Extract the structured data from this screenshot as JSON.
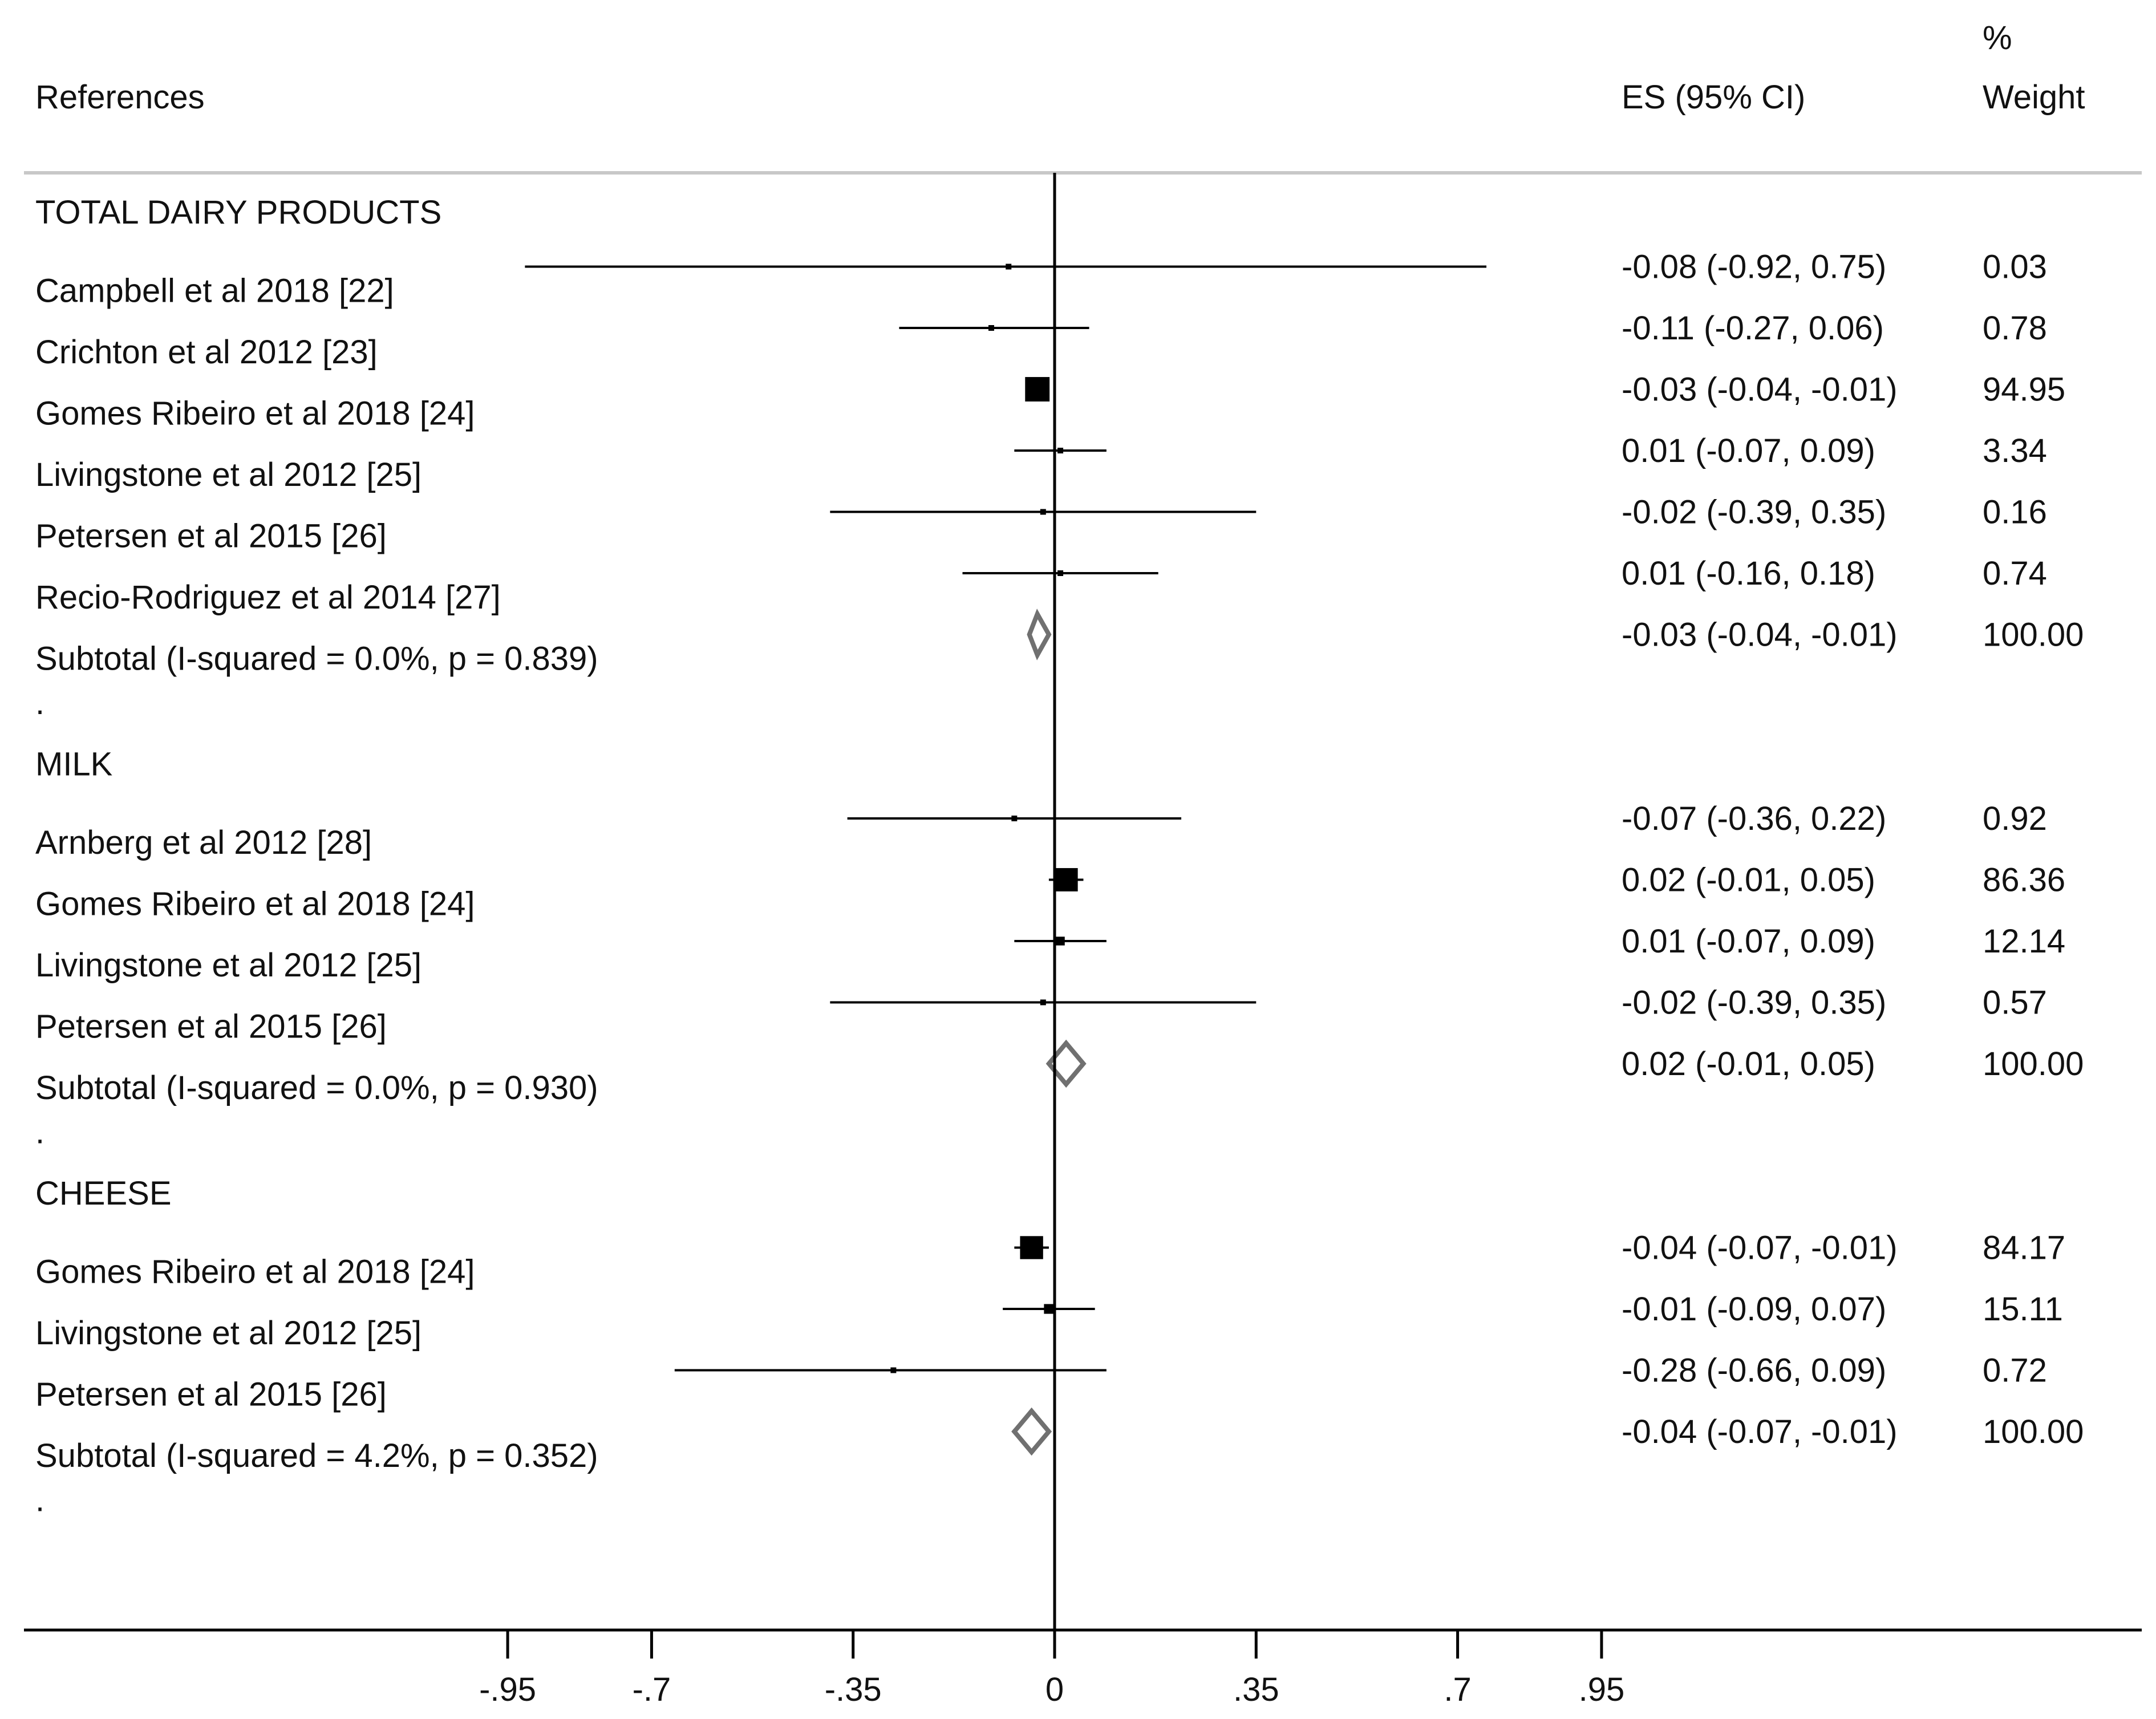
{
  "chart_data": {
    "type": "forest",
    "header": {
      "references_label": "References",
      "es_label": "ES (95% CI)",
      "weight_label_line1": "%",
      "weight_label_line2": "Weight"
    },
    "xaxis": {
      "ticks": [
        -0.95,
        -0.7,
        -0.35,
        0,
        0.35,
        0.7,
        0.95
      ],
      "tick_labels": [
        "-.95",
        "-.7",
        "-.35",
        "0",
        ".35",
        ".7",
        ".95"
      ],
      "range": [
        -0.95,
        0.95
      ]
    },
    "rows": [
      {
        "kind": "group",
        "label": "TOTAL DAIRY PRODUCTS"
      },
      {
        "kind": "study",
        "label": "Campbell et al 2018 [22]",
        "es": -0.08,
        "lo": -0.92,
        "hi": 0.75,
        "es_text": "-0.08 (-0.92, 0.75)",
        "weight": 0.03,
        "weight_text": "0.03"
      },
      {
        "kind": "study",
        "label": "Crichton et al 2012 [23]",
        "es": -0.11,
        "lo": -0.27,
        "hi": 0.06,
        "es_text": "-0.11 (-0.27, 0.06)",
        "weight": 0.78,
        "weight_text": "0.78"
      },
      {
        "kind": "study",
        "label": "Gomes Ribeiro et al 2018 [24]",
        "es": -0.03,
        "lo": -0.04,
        "hi": -0.01,
        "es_text": "-0.03 (-0.04, -0.01)",
        "weight": 94.95,
        "weight_text": "94.95"
      },
      {
        "kind": "study",
        "label": "Livingstone et al 2012 [25]",
        "es": 0.01,
        "lo": -0.07,
        "hi": 0.09,
        "es_text": "0.01 (-0.07, 0.09)",
        "weight": 3.34,
        "weight_text": "3.34"
      },
      {
        "kind": "study",
        "label": "Petersen et al 2015 [26]",
        "es": -0.02,
        "lo": -0.39,
        "hi": 0.35,
        "es_text": "-0.02 (-0.39, 0.35)",
        "weight": 0.16,
        "weight_text": "0.16"
      },
      {
        "kind": "study",
        "label": "Recio-Rodriguez et al 2014 [27]",
        "es": 0.01,
        "lo": -0.16,
        "hi": 0.18,
        "es_text": "0.01 (-0.16, 0.18)",
        "weight": 0.74,
        "weight_text": "0.74"
      },
      {
        "kind": "subtotal",
        "label": "Subtotal  (I-squared = 0.0%, p = 0.839)",
        "es": -0.03,
        "lo": -0.04,
        "hi": -0.01,
        "es_text": "-0.03 (-0.04, -0.01)",
        "weight": 100.0,
        "weight_text": "100.00"
      },
      {
        "kind": "spacer",
        "label": "."
      },
      {
        "kind": "group",
        "label": "MILK"
      },
      {
        "kind": "study",
        "label": "Arnberg et al 2012 [28]",
        "es": -0.07,
        "lo": -0.36,
        "hi": 0.22,
        "es_text": "-0.07 (-0.36, 0.22)",
        "weight": 0.92,
        "weight_text": "0.92"
      },
      {
        "kind": "study",
        "label": "Gomes Ribeiro et al 2018 [24]",
        "es": 0.02,
        "lo": -0.01,
        "hi": 0.05,
        "es_text": "0.02 (-0.01, 0.05)",
        "weight": 86.36,
        "weight_text": "86.36"
      },
      {
        "kind": "study",
        "label": "Livingstone et al 2012 [25]",
        "es": 0.01,
        "lo": -0.07,
        "hi": 0.09,
        "es_text": "0.01 (-0.07, 0.09)",
        "weight": 12.14,
        "weight_text": "12.14"
      },
      {
        "kind": "study",
        "label": "Petersen et al 2015 [26]",
        "es": -0.02,
        "lo": -0.39,
        "hi": 0.35,
        "es_text": "-0.02 (-0.39, 0.35)",
        "weight": 0.57,
        "weight_text": "0.57"
      },
      {
        "kind": "subtotal",
        "label": "Subtotal  (I-squared = 0.0%, p = 0.930)",
        "es": 0.02,
        "lo": -0.01,
        "hi": 0.05,
        "es_text": "0.02 (-0.01, 0.05)",
        "weight": 100.0,
        "weight_text": "100.00"
      },
      {
        "kind": "spacer",
        "label": "."
      },
      {
        "kind": "group",
        "label": "CHEESE"
      },
      {
        "kind": "study",
        "label": "Gomes Ribeiro et al 2018 [24]",
        "es": -0.04,
        "lo": -0.07,
        "hi": -0.01,
        "es_text": "-0.04 (-0.07, -0.01)",
        "weight": 84.17,
        "weight_text": "84.17"
      },
      {
        "kind": "study",
        "label": "Livingstone et al 2012 [25]",
        "es": -0.01,
        "lo": -0.09,
        "hi": 0.07,
        "es_text": "-0.01 (-0.09, 0.07)",
        "weight": 15.11,
        "weight_text": "15.11"
      },
      {
        "kind": "study",
        "label": "Petersen et al 2015 [26]",
        "es": -0.28,
        "lo": -0.66,
        "hi": 0.09,
        "es_text": "-0.28 (-0.66, 0.09)",
        "weight": 0.72,
        "weight_text": "0.72"
      },
      {
        "kind": "subtotal",
        "label": "Subtotal  (I-squared = 4.2%, p = 0.352)",
        "es": -0.04,
        "lo": -0.07,
        "hi": -0.01,
        "es_text": "-0.04 (-0.07, -0.01)",
        "weight": 100.0,
        "weight_text": "100.00"
      },
      {
        "kind": "spacer",
        "label": "."
      }
    ],
    "colors": {
      "text": "#111111",
      "marker": "#000000",
      "diamond": "#707070",
      "header_rule": "#c8c8c8"
    }
  }
}
